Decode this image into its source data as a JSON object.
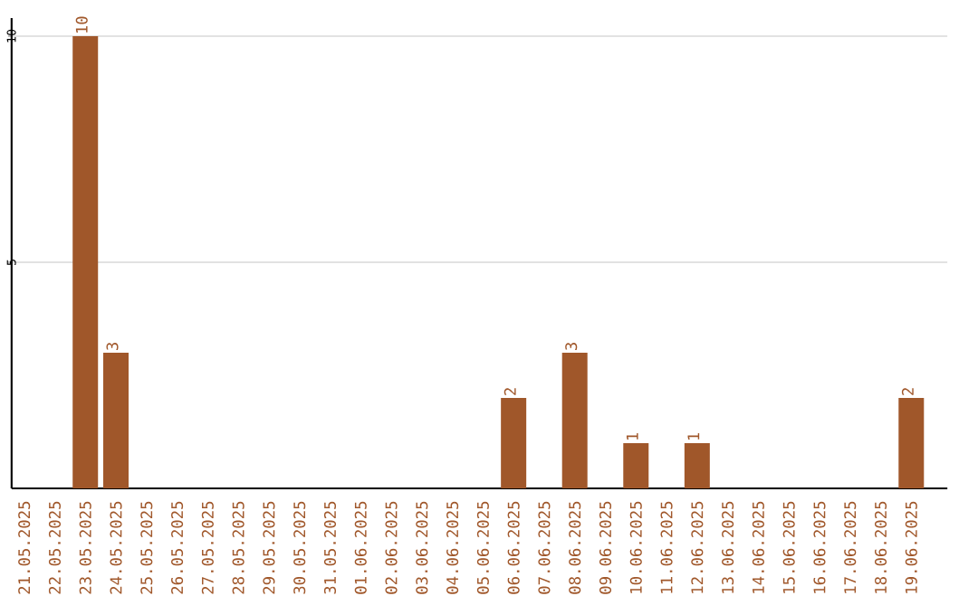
{
  "chart_data": {
    "type": "bar",
    "categories": [
      "21.05.2025",
      "22.05.2025",
      "23.05.2025",
      "24.05.2025",
      "25.05.2025",
      "26.05.2025",
      "27.05.2025",
      "28.05.2025",
      "29.05.2025",
      "30.05.2025",
      "31.05.2025",
      "01.06.2025",
      "02.06.2025",
      "03.06.2025",
      "04.06.2025",
      "05.06.2025",
      "06.06.2025",
      "07.06.2025",
      "08.06.2025",
      "09.06.2025",
      "10.06.2025",
      "11.06.2025",
      "12.06.2025",
      "13.06.2025",
      "14.06.2025",
      "15.06.2025",
      "16.06.2025",
      "17.06.2025",
      "18.06.2025",
      "19.06.2025"
    ],
    "values": [
      0,
      0,
      10,
      3,
      0,
      0,
      0,
      0,
      0,
      0,
      0,
      0,
      0,
      0,
      0,
      0,
      2,
      0,
      3,
      0,
      1,
      0,
      1,
      0,
      0,
      0,
      0,
      0,
      0,
      2
    ],
    "value_labels": [
      null,
      null,
      "10",
      "3",
      null,
      null,
      null,
      null,
      null,
      null,
      null,
      null,
      null,
      null,
      null,
      null,
      "2",
      null,
      "3",
      null,
      "1",
      null,
      "1",
      null,
      null,
      null,
      null,
      null,
      null,
      "2"
    ],
    "color": "#a0572a",
    "ylim": [
      0,
      10.4
    ],
    "yticks": [
      5,
      10
    ],
    "grid": "y"
  }
}
